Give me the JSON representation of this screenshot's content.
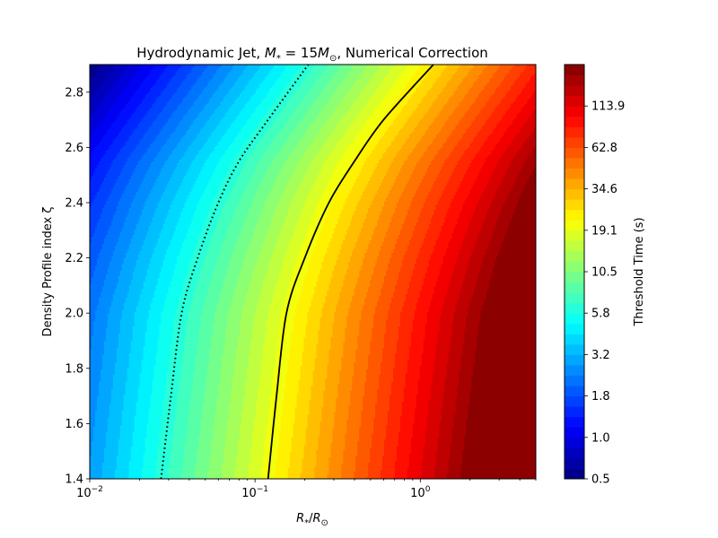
{
  "chart_data": {
    "type": "heatmap",
    "title_prefix": "Hydrodynamic Jet, ",
    "title_math_M": "M",
    "title_math_star": "*",
    "title_math_eq": " = 15",
    "title_math_Mo": "M",
    "title_math_sun": "⊙",
    "title_suffix": ", Numerical Correction",
    "xlabel_R": "R",
    "xlabel_star": "*",
    "xlabel_slash": "/",
    "xlabel_Ro": "R",
    "xlabel_sun": "⊙",
    "ylabel": "Density Profile index ζ",
    "x_scale": "log",
    "xlim": [
      0.01,
      5.0
    ],
    "ylim": [
      1.4,
      2.9
    ],
    "x_ticks": [
      {
        "value": 0.01,
        "base": "10",
        "exp": "−2"
      },
      {
        "value": 0.1,
        "base": "10",
        "exp": "−1"
      },
      {
        "value": 1.0,
        "base": "10",
        "exp": "0"
      }
    ],
    "y_ticks": [
      "1.4",
      "1.6",
      "1.8",
      "2.0",
      "2.2",
      "2.4",
      "2.6",
      "2.8"
    ],
    "colorbar": {
      "label": "Threshold Time (s)",
      "scale": "log",
      "colormap": "jet",
      "range": [
        0.5,
        200
      ],
      "levels": 40,
      "ticks": [
        "0.5",
        "1.0",
        "1.8",
        "3.2",
        "5.8",
        "10.5",
        "19.1",
        "34.6",
        "62.8",
        "113.9"
      ]
    },
    "contours": [
      {
        "style": "dotted",
        "color": "#000000",
        "points": [
          [
            0.027,
            1.4
          ],
          [
            0.031,
            1.7
          ],
          [
            0.036,
            2.0
          ],
          [
            0.045,
            2.2
          ],
          [
            0.06,
            2.4
          ],
          [
            0.08,
            2.55
          ],
          [
            0.12,
            2.7
          ],
          [
            0.21,
            2.9
          ]
        ]
      },
      {
        "style": "solid",
        "color": "#000000",
        "points": [
          [
            0.12,
            1.4
          ],
          [
            0.135,
            1.7
          ],
          [
            0.155,
            2.0
          ],
          [
            0.2,
            2.2
          ],
          [
            0.28,
            2.4
          ],
          [
            0.4,
            2.55
          ],
          [
            0.6,
            2.7
          ],
          [
            1.2,
            2.9
          ]
        ]
      }
    ]
  }
}
